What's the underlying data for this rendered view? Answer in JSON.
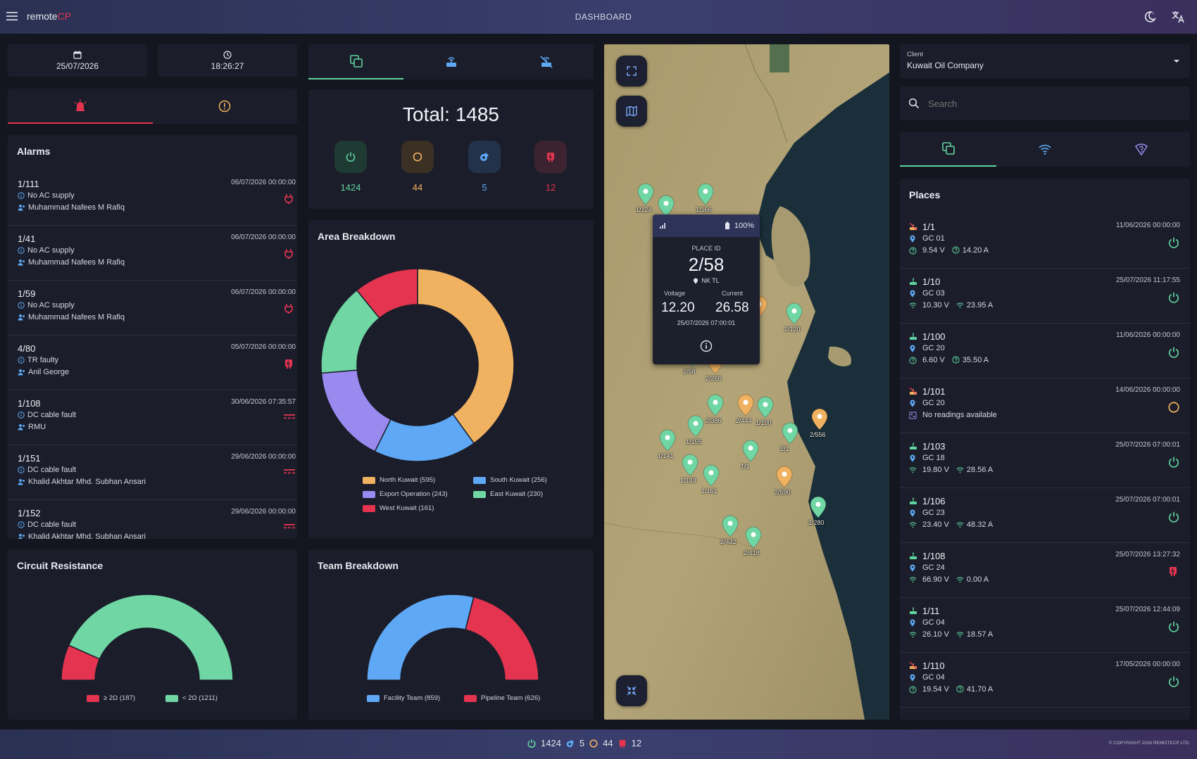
{
  "topbar": {
    "brand_main": "remote",
    "brand_accent": "CP",
    "title": "DASHBOARD"
  },
  "colors": {
    "accent_green": "#5fd3a0",
    "accent_red": "#e4344f",
    "accent_orange": "#f0b160",
    "accent_blue": "#5ea8f5",
    "accent_purple": "#9a8af0"
  },
  "datetime": {
    "date": "25/07/2026",
    "time": "18:26:27"
  },
  "alarm_tabs": [
    {
      "icon": "siren-icon",
      "active": true
    },
    {
      "icon": "warning-circle-icon",
      "active": false
    }
  ],
  "alarms": {
    "title": "Alarms",
    "items": [
      {
        "id": "1/111",
        "timestamp": "06/07/2026 00:00:00",
        "description": "No AC supply",
        "assignee": "Muhammad Nafees M Rafiq",
        "icon": "plug-icon"
      },
      {
        "id": "1/41",
        "timestamp": "06/07/2026 00:00:00",
        "description": "No AC supply",
        "assignee": "Muhammad Nafees M Rafiq",
        "icon": "plug-icon"
      },
      {
        "id": "1/59",
        "timestamp": "06/07/2026 00:00:00",
        "description": "No AC supply",
        "assignee": "Muhammad Nafees M Rafiq",
        "icon": "plug-icon"
      },
      {
        "id": "4/80",
        "timestamp": "05/07/2026 00:00:00",
        "description": "TR faulty",
        "assignee": "Anil George",
        "icon": "transformer-icon"
      },
      {
        "id": "1/108",
        "timestamp": "30/06/2026 07:35:57",
        "description": "DC cable fault",
        "assignee": "RMU",
        "icon": "dc-icon"
      },
      {
        "id": "1/151",
        "timestamp": "29/06/2026 00:00:00",
        "description": "DC cable fault",
        "assignee": "Khalid Akhtar Mhd. Subhan Ansari",
        "icon": "dc-icon"
      },
      {
        "id": "1/152",
        "timestamp": "29/06/2026 00:00:00",
        "description": "DC cable fault",
        "assignee": "Khalid Akhtar Mhd. Subhan Ansari",
        "icon": "dc-icon"
      }
    ]
  },
  "middle_tabs": [
    {
      "icon": "places-icon",
      "active": true
    },
    {
      "icon": "router-icon",
      "active": false
    },
    {
      "icon": "router-off-icon",
      "active": false
    }
  ],
  "total": {
    "label": "Total: 1485",
    "stats": [
      {
        "name": "online",
        "icon": "power-icon",
        "value": "1424",
        "color": "#5fd3a0"
      },
      {
        "name": "warning",
        "icon": "ring-icon",
        "value": "44",
        "color": "#f0b160"
      },
      {
        "name": "maintenance",
        "icon": "maintenance-icon",
        "value": "5",
        "color": "#5ea8f5"
      },
      {
        "name": "fault",
        "icon": "transformer-icon",
        "value": "12",
        "color": "#e4344f"
      }
    ]
  },
  "area_breakdown": {
    "title": "Area Breakdown",
    "legend": [
      "North Kuwait (595)",
      "South Kuwait (256)",
      "Export Operation (243)",
      "East Kuwait (230)",
      "West Kuwait (161)"
    ]
  },
  "circuit_resistance": {
    "title": "Circuit Resistance",
    "legend": [
      "≥ 2Ω (187)",
      "< 2Ω (1211)"
    ]
  },
  "team_breakdown": {
    "title": "Team Breakdown",
    "legend": [
      "Facility Team (859)",
      "Pipeline Team (626)"
    ]
  },
  "chart_data": [
    {
      "type": "pie",
      "title": "Area Breakdown",
      "categories": [
        "North Kuwait",
        "South Kuwait",
        "Export Operation",
        "East Kuwait",
        "West Kuwait"
      ],
      "values": [
        595,
        256,
        243,
        230,
        161
      ],
      "colors": [
        "#f0b160",
        "#5ea8f5",
        "#9a8af0",
        "#6fd6a4",
        "#e4344f"
      ]
    },
    {
      "type": "pie",
      "title": "Circuit Resistance",
      "categories": [
        "≥ 2Ω",
        "< 2Ω"
      ],
      "values": [
        187,
        1211
      ],
      "colors": [
        "#e4344f",
        "#6fd6a4"
      ]
    },
    {
      "type": "pie",
      "title": "Team Breakdown",
      "categories": [
        "Facility Team",
        "Pipeline Team"
      ],
      "values": [
        859,
        626
      ],
      "colors": [
        "#5ea8f5",
        "#e4344f"
      ]
    }
  ],
  "map": {
    "pins": [
      {
        "label": "1/124",
        "color": "#6fd6a4"
      },
      {
        "label": "",
        "color": "#6fd6a4"
      },
      {
        "label": "1/166",
        "color": "#6fd6a4"
      },
      {
        "label": "2/120",
        "color": "#6fd6a4"
      },
      {
        "label": "8",
        "color": "#f0b160"
      },
      {
        "label": "2/58",
        "color": "#6fd6a4"
      },
      {
        "label": "2/266",
        "color": "#f0b160"
      },
      {
        "label": "2/386",
        "color": "#6fd6a4"
      },
      {
        "label": "2/444",
        "color": "#f0b160"
      },
      {
        "label": "1/100",
        "color": "#6fd6a4"
      },
      {
        "label": "2/556",
        "color": "#f0b160"
      },
      {
        "label": "1/155",
        "color": "#6fd6a4"
      },
      {
        "label": "2/1",
        "color": "#6fd6a4"
      },
      {
        "label": "1/141",
        "color": "#6fd6a4"
      },
      {
        "label": "1/1",
        "color": "#6fd6a4"
      },
      {
        "label": "1/103",
        "color": "#6fd6a4"
      },
      {
        "label": "1/161",
        "color": "#6fd6a4"
      },
      {
        "label": "2/590",
        "color": "#f0b160"
      },
      {
        "label": "2/280",
        "color": "#6fd6a4"
      },
      {
        "label": "2/432",
        "color": "#6fd6a4"
      },
      {
        "label": "2/418",
        "color": "#6fd6a4"
      }
    ],
    "popup": {
      "battery": "100%",
      "place_id_label": "PLACE ID",
      "place_id": "2/58",
      "location": "NK TL",
      "voltage_label": "Voltage",
      "current_label": "Current",
      "voltage": "12.20",
      "current": "26.58",
      "timestamp": "25/07/2026 07:00:01"
    }
  },
  "client": {
    "label": "Client",
    "value": "Kuwait Oil Company"
  },
  "search": {
    "placeholder": "Search"
  },
  "right_tabs": [
    {
      "icon": "places-icon",
      "active": true
    },
    {
      "icon": "wifi-icon",
      "active": false
    },
    {
      "icon": "wifi-help-icon",
      "active": false
    }
  ],
  "places": {
    "title": "Places",
    "items": [
      {
        "id": "1/1",
        "timestamp": "11/06/2026 00:00:00",
        "gc": "GC 01",
        "voltage": "9.54 V",
        "current": "14.20 A",
        "status": "power-icon",
        "type": "off"
      },
      {
        "id": "1/10",
        "timestamp": "25/07/2026 11:17:55",
        "gc": "GC 03",
        "voltage": "10.30 V",
        "current": "23.95 A",
        "status": "power-icon",
        "type": "on"
      },
      {
        "id": "1/100",
        "timestamp": "11/06/2026 00:00:00",
        "gc": "GC 20",
        "voltage": "6.60 V",
        "current": "35.50 A",
        "status": "power-icon",
        "type": "on"
      },
      {
        "id": "1/101",
        "timestamp": "14/06/2026 00:00:00",
        "gc": "GC 20",
        "note": "No readings available",
        "status": "ring-icon",
        "type": "off"
      },
      {
        "id": "1/103",
        "timestamp": "25/07/2026 07:00:01",
        "gc": "GC 18",
        "voltage": "19.80 V",
        "current": "28.56 A",
        "status": "power-icon",
        "type": "on"
      },
      {
        "id": "1/106",
        "timestamp": "25/07/2026 07:00:01",
        "gc": "GC 23",
        "voltage": "23.40 V",
        "current": "48.32 A",
        "status": "power-icon",
        "type": "on"
      },
      {
        "id": "1/108",
        "timestamp": "25/07/2026 13:27:32",
        "gc": "GC 24",
        "voltage": "66.90 V",
        "current": "0.00 A",
        "status": "transformer-icon",
        "type": "on"
      },
      {
        "id": "1/11",
        "timestamp": "25/07/2026 12:44:09",
        "gc": "GC 04",
        "voltage": "26.10 V",
        "current": "18.57 A",
        "status": "power-icon",
        "type": "on"
      },
      {
        "id": "1/110",
        "timestamp": "17/05/2026 00:00:00",
        "gc": "GC 04",
        "voltage": "19.54 V",
        "current": "41.70 A",
        "status": "power-icon",
        "type": "off"
      }
    ]
  },
  "footer": {
    "online": "1424",
    "maintenance": "5",
    "warning": "44",
    "fault": "12",
    "copyright": "© COPYRIGHT 2026 REMOTECP LTD."
  }
}
